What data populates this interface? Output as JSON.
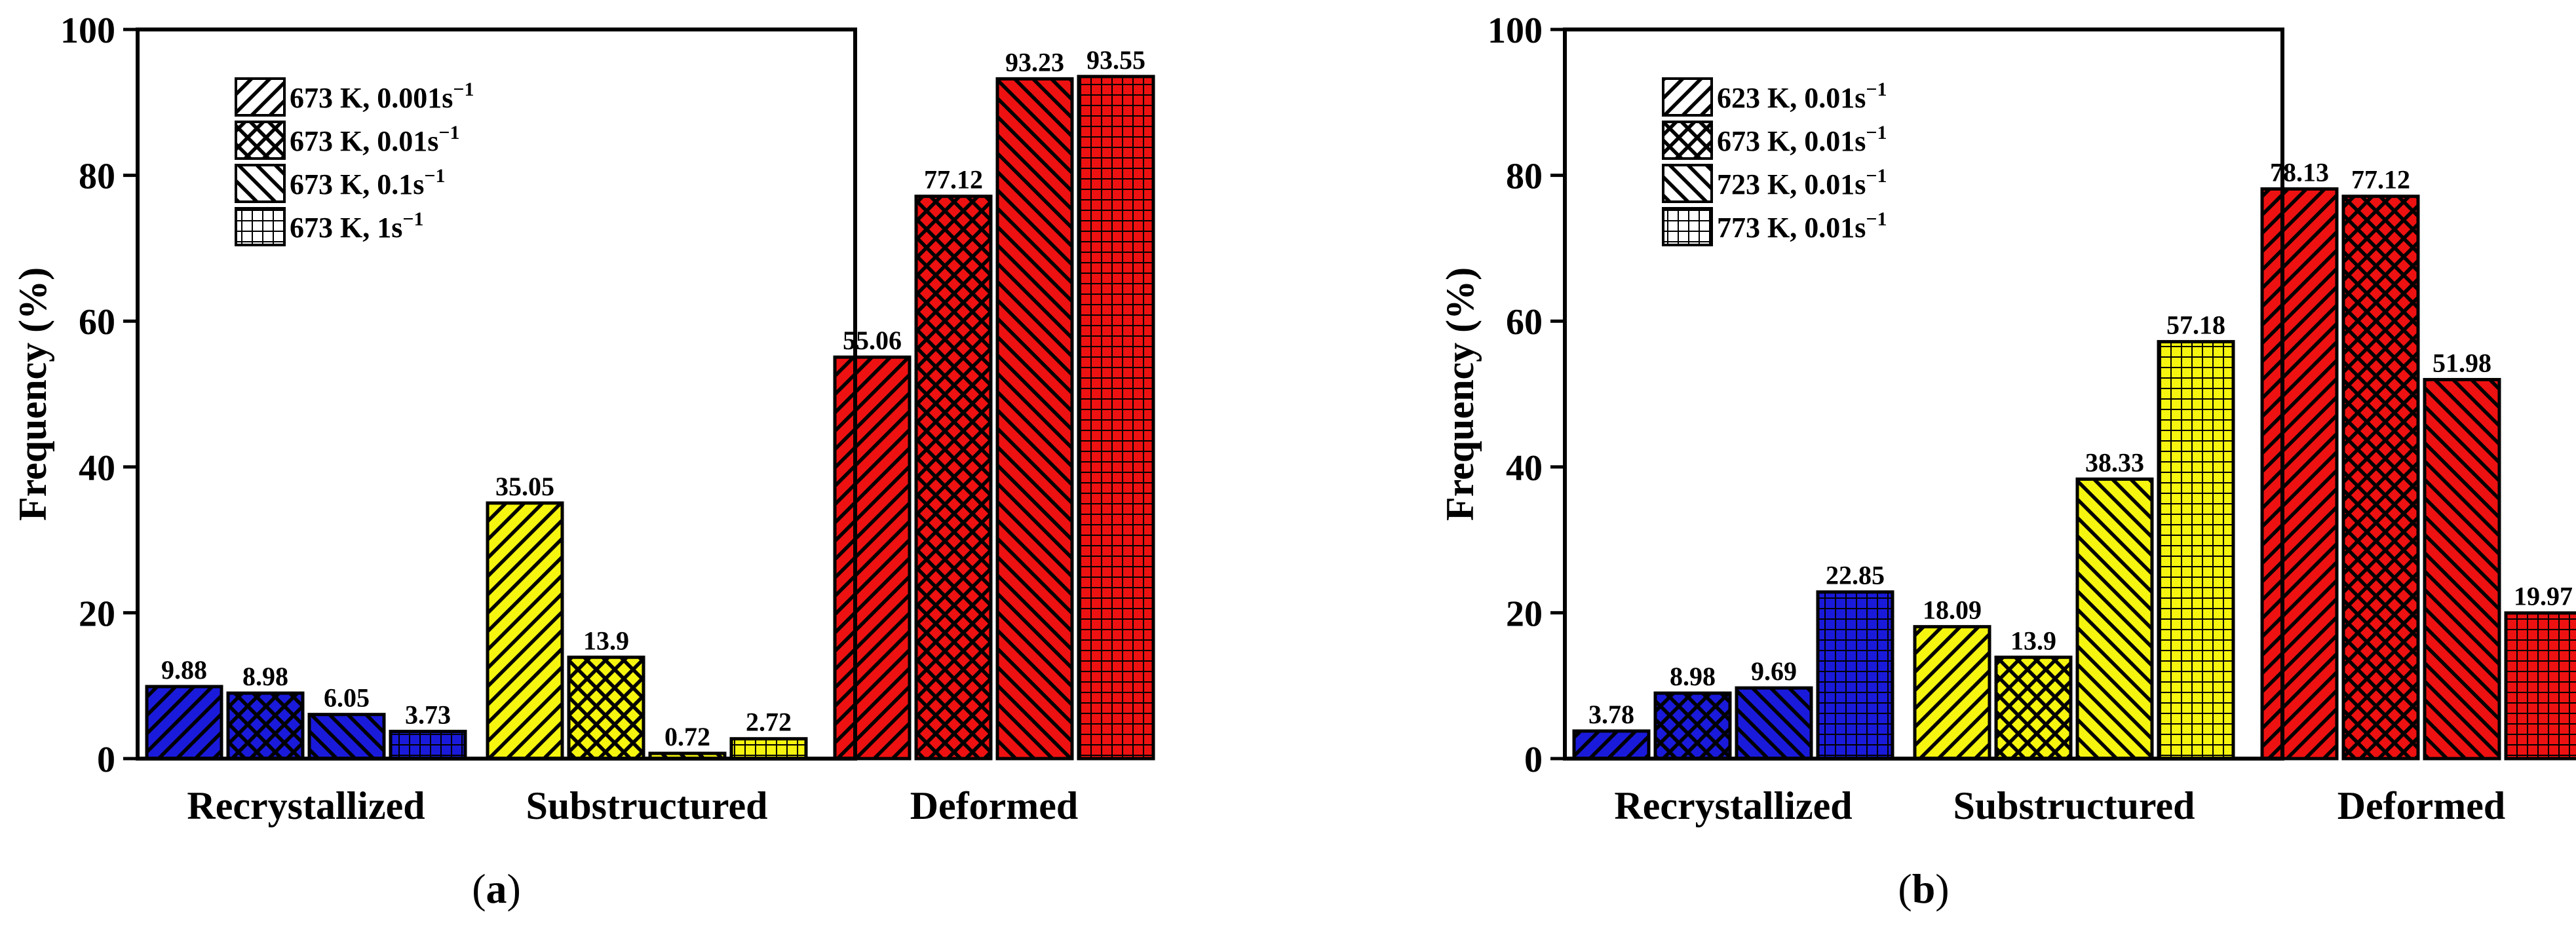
{
  "colors": {
    "recrystallized": "#1a1adb",
    "substructured": "#f5f50f",
    "deformed": "#ee1111"
  },
  "chart_data": [
    {
      "type": "bar",
      "panel_label": "a",
      "ylabel": "Frequency (%)",
      "ylim": [
        0,
        100
      ],
      "yticks": [
        "0",
        "20",
        "40",
        "60",
        "80",
        "100"
      ],
      "categories": [
        "Recrystallized",
        "Substructured",
        "Deformed"
      ],
      "grid": false,
      "legend_position": "top-left",
      "series": [
        {
          "name": "673 K, 0.001s",
          "exp": "−1",
          "pattern": "diag-fwd",
          "values": [
            9.88,
            35.05,
            55.06
          ],
          "labels": [
            "9.88",
            "35.05",
            "55.06"
          ]
        },
        {
          "name": "673 K, 0.01s",
          "exp": "−1",
          "pattern": "cross",
          "values": [
            8.98,
            13.9,
            77.12
          ],
          "labels": [
            "8.98",
            "13.9",
            "77.12"
          ]
        },
        {
          "name": "673 K, 0.1s",
          "exp": "−1",
          "pattern": "diag-back",
          "values": [
            6.05,
            0.72,
            93.23
          ],
          "labels": [
            "6.05",
            "0.72",
            "93.23"
          ]
        },
        {
          "name": "673 K, 1s",
          "exp": "−1",
          "pattern": "grid",
          "values": [
            3.73,
            2.72,
            93.55
          ],
          "labels": [
            "3.73",
            "2.72",
            "93.55"
          ]
        }
      ]
    },
    {
      "type": "bar",
      "panel_label": "b",
      "ylabel": "Frequency (%)",
      "ylim": [
        0,
        100
      ],
      "yticks": [
        "0",
        "20",
        "40",
        "60",
        "80",
        "100"
      ],
      "categories": [
        "Recrystallized",
        "Substructured",
        "Deformed"
      ],
      "grid": false,
      "legend_position": "top-left",
      "series": [
        {
          "name": "623 K, 0.01s",
          "exp": "−1",
          "pattern": "diag-fwd",
          "values": [
            3.78,
            18.09,
            78.13
          ],
          "labels": [
            "3.78",
            "18.09",
            "78.13"
          ]
        },
        {
          "name": "673 K, 0.01s",
          "exp": "−1",
          "pattern": "cross",
          "values": [
            8.98,
            13.9,
            77.12
          ],
          "labels": [
            "8.98",
            "13.9",
            "77.12"
          ]
        },
        {
          "name": "723 K, 0.01s",
          "exp": "−1",
          "pattern": "diag-back",
          "values": [
            9.69,
            38.33,
            51.98
          ],
          "labels": [
            "9.69",
            "38.33",
            "51.98"
          ]
        },
        {
          "name": "773 K, 0.01s",
          "exp": "−1",
          "pattern": "grid",
          "values": [
            22.85,
            57.18,
            19.97
          ],
          "labels": [
            "22.85",
            "57.18",
            "19.97"
          ]
        }
      ]
    }
  ]
}
